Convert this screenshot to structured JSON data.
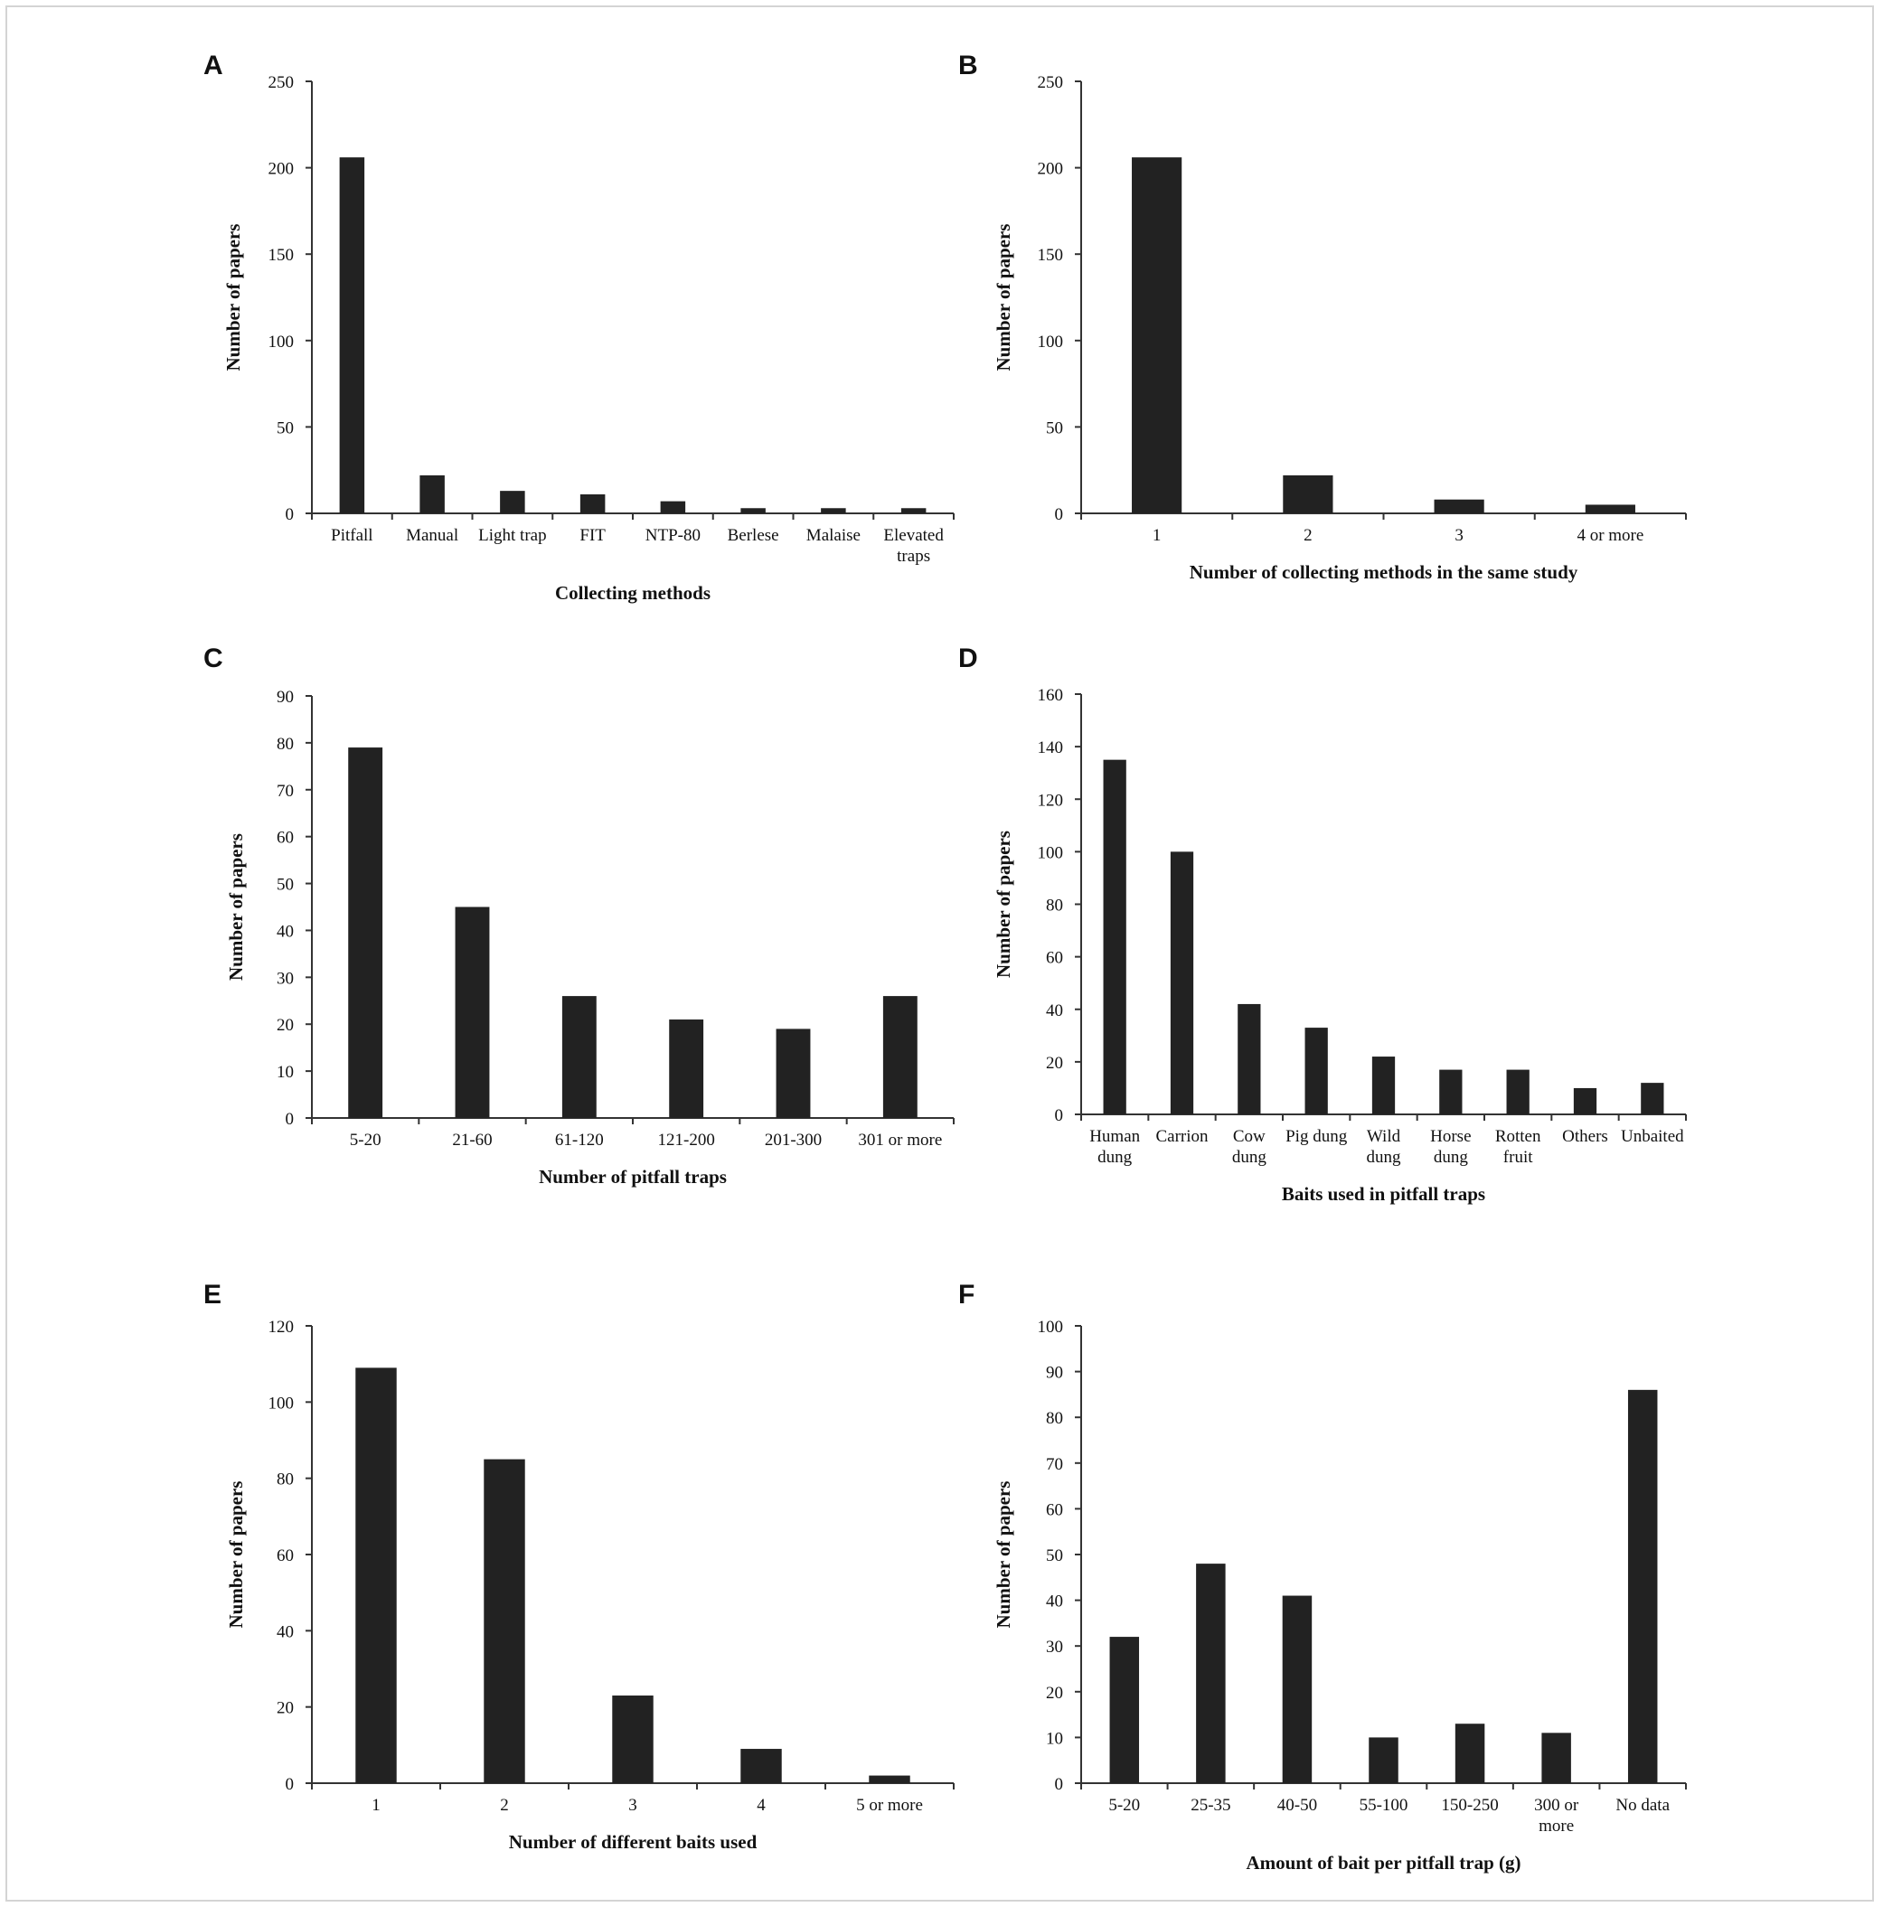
{
  "colors": {
    "bar": "#222222",
    "axis": "#333333"
  },
  "chart_data": [
    {
      "panel": "A",
      "type": "bar",
      "categories": [
        "Pitfall",
        "Manual",
        "Light trap",
        "FIT",
        "NTP-80",
        "Berlese",
        "Malaise",
        "Elevated traps"
      ],
      "values": [
        206,
        22,
        13,
        11,
        7,
        3,
        3,
        3
      ],
      "xlabel": "Collecting methods",
      "ylabel": "Number of papers",
      "ylim": [
        0,
        250
      ],
      "yticks": [
        0,
        50,
        100,
        150,
        200,
        250
      ],
      "grid": false
    },
    {
      "panel": "B",
      "type": "bar",
      "categories": [
        "1",
        "2",
        "3",
        "4 or more"
      ],
      "values": [
        206,
        22,
        8,
        5
      ],
      "xlabel": "Number of collecting methods in the same study",
      "ylabel": "Number of papers",
      "ylim": [
        0,
        250
      ],
      "yticks": [
        0,
        50,
        100,
        150,
        200,
        250
      ],
      "grid": false
    },
    {
      "panel": "C",
      "type": "bar",
      "categories": [
        "5-20",
        "21-60",
        "61-120",
        "121-200",
        "201-300",
        "301 or more"
      ],
      "values": [
        79,
        45,
        26,
        21,
        19,
        26
      ],
      "xlabel": "Number of pitfall traps",
      "ylabel": "Number of papers",
      "ylim": [
        0,
        90
      ],
      "yticks": [
        0,
        10,
        20,
        30,
        40,
        50,
        60,
        70,
        80,
        90
      ],
      "grid": false
    },
    {
      "panel": "D",
      "type": "bar",
      "categories": [
        "Human dung",
        "Carrion",
        "Cow dung",
        "Pig dung",
        "Wild dung",
        "Horse dung",
        "Rotten fruit",
        "Others",
        "Unbaited"
      ],
      "values": [
        135,
        100,
        42,
        33,
        22,
        17,
        17,
        10,
        12
      ],
      "xlabel": "Baits used in pitfall traps",
      "ylabel": "Number of papers",
      "ylim": [
        0,
        160
      ],
      "yticks": [
        0,
        20,
        40,
        60,
        80,
        100,
        120,
        140,
        160
      ],
      "grid": false
    },
    {
      "panel": "E",
      "type": "bar",
      "categories": [
        "1",
        "2",
        "3",
        "4",
        "5 or more"
      ],
      "values": [
        109,
        85,
        23,
        9,
        2
      ],
      "xlabel": "Number of different baits used",
      "ylabel": "Number of papers",
      "ylim": [
        0,
        120
      ],
      "yticks": [
        0,
        20,
        40,
        60,
        80,
        100,
        120
      ],
      "grid": false
    },
    {
      "panel": "F",
      "type": "bar",
      "categories": [
        "5-20",
        "25-35",
        "40-50",
        "55-100",
        "150-250",
        "300 or more",
        "No data"
      ],
      "values": [
        32,
        48,
        41,
        10,
        13,
        11,
        86
      ],
      "xlabel": "Amount of bait per pitfall trap (g)",
      "ylabel": "Number of papers",
      "ylim": [
        0,
        100
      ],
      "yticks": [
        0,
        10,
        20,
        30,
        40,
        50,
        60,
        70,
        80,
        90,
        100
      ],
      "grid": false
    }
  ]
}
